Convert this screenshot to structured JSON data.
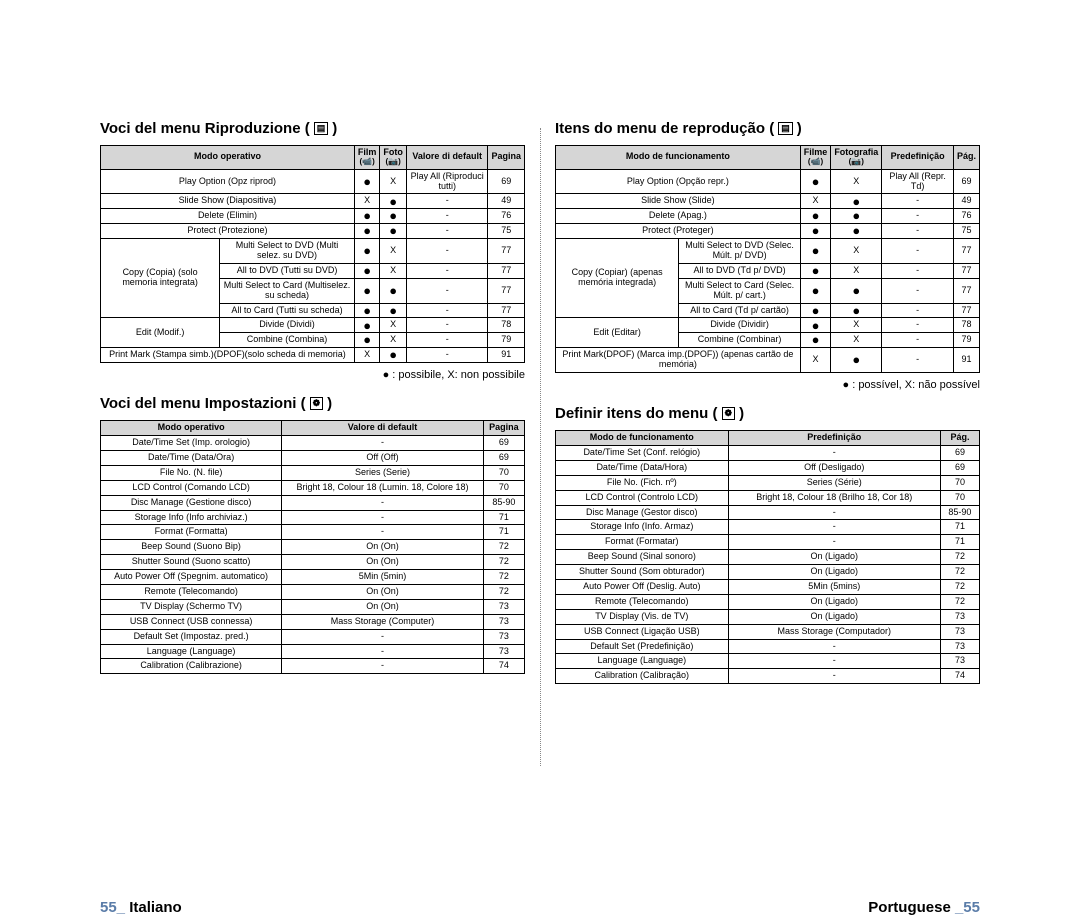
{
  "left": {
    "heading1": "Voci del menu Riproduzione (",
    "heading1_icon": "▤",
    "heading1_close": ")",
    "table1": {
      "headers": [
        "Modo operativo",
        "Film",
        "(📹)",
        "Foto",
        "(📷)",
        "Valore di default",
        "Pagina"
      ],
      "rows": [
        {
          "label": "Play Option (Opz riprod)",
          "film": "●",
          "foto": "X",
          "def": "Play All (Riproduci tutti)",
          "page": "69",
          "rowspan_label": ""
        },
        {
          "label": "Slide Show (Diapositiva)",
          "film": "X",
          "foto": "●",
          "def": "-",
          "page": "49"
        },
        {
          "label": "Delete (Elimin)",
          "film": "●",
          "foto": "●",
          "def": "-",
          "page": "76"
        },
        {
          "label": "Protect (Protezione)",
          "film": "●",
          "foto": "●",
          "def": "-",
          "page": "75"
        }
      ],
      "copy_label": "Copy (Copia) (solo memoria integrata)",
      "copy_rows": [
        {
          "label": "Multi Select to DVD (Multi selez. su DVD)",
          "film": "●",
          "foto": "X",
          "def": "-",
          "page": "77"
        },
        {
          "label": "All to DVD (Tutti su DVD)",
          "film": "●",
          "foto": "X",
          "def": "-",
          "page": "77"
        },
        {
          "label": "Multi Select to Card (Multiselez. su scheda)",
          "film": "●",
          "foto": "●",
          "def": "-",
          "page": "77"
        },
        {
          "label": "All to Card (Tutti su scheda)",
          "film": "●",
          "foto": "●",
          "def": "-",
          "page": "77"
        }
      ],
      "edit_label": "Edit (Modif.)",
      "edit_rows": [
        {
          "label": "Divide (Dividi)",
          "film": "●",
          "foto": "X",
          "def": "-",
          "page": "78"
        },
        {
          "label": "Combine (Combina)",
          "film": "●",
          "foto": "X",
          "def": "-",
          "page": "79"
        }
      ],
      "last_row": {
        "label": "Print Mark (Stampa simb.)(DPOF)(solo scheda di memoria)",
        "film": "X",
        "foto": "●",
        "def": "-",
        "page": "91"
      }
    },
    "legend1": "● : possibile, X: non possibile",
    "heading2": "Voci del menu Impostazioni (",
    "heading2_icon": "❁",
    "heading2_close": ")",
    "table2": {
      "headers": [
        "Modo operativo",
        "Valore di default",
        "Pagina"
      ],
      "rows": [
        {
          "a": "Date/Time Set (Imp. orologio)",
          "b": "-",
          "c": "69"
        },
        {
          "a": "Date/Time (Data/Ora)",
          "b": "Off (Off)",
          "c": "69"
        },
        {
          "a": "File No. (N. file)",
          "b": "Series (Serie)",
          "c": "70"
        },
        {
          "a": "LCD Control (Comando LCD)",
          "b": "Bright 18, Colour 18 (Lumin. 18, Colore 18)",
          "c": "70"
        },
        {
          "a": "Disc Manage (Gestione disco)",
          "b": "-",
          "c": "85-90"
        },
        {
          "a": "Storage Info (Info archiviaz.)",
          "b": "-",
          "c": "71"
        },
        {
          "a": "Format (Formatta)",
          "b": "-",
          "c": "71"
        },
        {
          "a": "Beep Sound (Suono Bip)",
          "b": "On (On)",
          "c": "72"
        },
        {
          "a": "Shutter Sound (Suono scatto)",
          "b": "On (On)",
          "c": "72"
        },
        {
          "a": "Auto Power Off (Spegnim. automatico)",
          "b": "5Min (5min)",
          "c": "72"
        },
        {
          "a": "Remote (Telecomando)",
          "b": "On (On)",
          "c": "72"
        },
        {
          "a": "TV Display (Schermo TV)",
          "b": "On (On)",
          "c": "73"
        },
        {
          "a": "USB Connect (USB connessa)",
          "b": "Mass Storage (Computer)",
          "c": "73"
        },
        {
          "a": "Default Set (Impostaz. pred.)",
          "b": "-",
          "c": "73"
        },
        {
          "a": "Language (Language)",
          "b": "-",
          "c": "73"
        },
        {
          "a": "Calibration (Calibrazione)",
          "b": "-",
          "c": "74"
        }
      ]
    },
    "footer_num": "55_",
    "footer_lang": " Italiano"
  },
  "right": {
    "heading1": "Itens do menu de reprodução (",
    "heading1_icon": "▤",
    "heading1_close": ")",
    "table1": {
      "headers": [
        "Modo de funcionamento",
        "Filme",
        "(📹)",
        "Fotografia",
        "(📷)",
        "Predefinição",
        "Pág."
      ],
      "rows": [
        {
          "label": "Play Option (Opção repr.)",
          "film": "●",
          "foto": "X",
          "def": "Play All (Repr. Td)",
          "page": "69"
        },
        {
          "label": "Slide Show (Slide)",
          "film": "X",
          "foto": "●",
          "def": "-",
          "page": "49"
        },
        {
          "label": "Delete (Apag.)",
          "film": "●",
          "foto": "●",
          "def": "-",
          "page": "76"
        },
        {
          "label": "Protect (Proteger)",
          "film": "●",
          "foto": "●",
          "def": "-",
          "page": "75"
        }
      ],
      "copy_label": "Copy (Copiar) (apenas memória integrada)",
      "copy_rows": [
        {
          "label": "Multi Select to DVD (Selec. Múlt. p/ DVD)",
          "film": "●",
          "foto": "X",
          "def": "-",
          "page": "77"
        },
        {
          "label": "All to DVD (Td p/ DVD)",
          "film": "●",
          "foto": "X",
          "def": "-",
          "page": "77"
        },
        {
          "label": "Multi Select to Card (Selec. Múlt. p/ cart.)",
          "film": "●",
          "foto": "●",
          "def": "-",
          "page": "77"
        },
        {
          "label": "All to Card (Td p/ cartão)",
          "film": "●",
          "foto": "●",
          "def": "-",
          "page": "77"
        }
      ],
      "edit_label": "Edit (Editar)",
      "edit_rows": [
        {
          "label": "Divide (Dividir)",
          "film": "●",
          "foto": "X",
          "def": "-",
          "page": "78"
        },
        {
          "label": "Combine (Combinar)",
          "film": "●",
          "foto": "X",
          "def": "-",
          "page": "79"
        }
      ],
      "last_row": {
        "label": "Print Mark(DPOF) (Marca imp.(DPOF)) (apenas cartão de memória)",
        "film": "X",
        "foto": "●",
        "def": "-",
        "page": "91"
      }
    },
    "legend1": "● : possível, X: não possível",
    "heading2": "Definir itens do menu (",
    "heading2_icon": "❁",
    "heading2_close": ")",
    "table2": {
      "headers": [
        "Modo de funcionamento",
        "Predefinição",
        "Pág."
      ],
      "rows": [
        {
          "a": "Date/Time Set (Conf. relógio)",
          "b": "-",
          "c": "69"
        },
        {
          "a": "Date/Time (Data/Hora)",
          "b": "Off (Desligado)",
          "c": "69"
        },
        {
          "a": "File No. (Fich. nº)",
          "b": "Series (Série)",
          "c": "70"
        },
        {
          "a": "LCD Control (Controlo LCD)",
          "b": "Bright 18, Colour 18 (Brilho 18, Cor 18)",
          "c": "70"
        },
        {
          "a": "Disc Manage (Gestor disco)",
          "b": "-",
          "c": "85-90"
        },
        {
          "a": "Storage Info (Info. Armaz)",
          "b": "-",
          "c": "71"
        },
        {
          "a": "Format (Formatar)",
          "b": "-",
          "c": "71"
        },
        {
          "a": "Beep Sound (Sinal sonoro)",
          "b": "On (Ligado)",
          "c": "72"
        },
        {
          "a": "Shutter Sound (Som obturador)",
          "b": "On (Ligado)",
          "c": "72"
        },
        {
          "a": "Auto Power Off (Deslig. Auto)",
          "b": "5Min (5mins)",
          "c": "72"
        },
        {
          "a": "Remote (Telecomando)",
          "b": "On (Ligado)",
          "c": "72"
        },
        {
          "a": "TV Display (Vis. de TV)",
          "b": "On (Ligado)",
          "c": "73"
        },
        {
          "a": "USB Connect (Ligação USB)",
          "b": "Mass Storage (Computador)",
          "c": "73"
        },
        {
          "a": "Default Set  (Predefinição)",
          "b": "-",
          "c": "73"
        },
        {
          "a": "Language (Language)",
          "b": "-",
          "c": "73"
        },
        {
          "a": "Calibration (Calibração)",
          "b": "-",
          "c": "74"
        }
      ]
    },
    "footer_lang": "Portuguese ",
    "footer_num": "_55"
  }
}
